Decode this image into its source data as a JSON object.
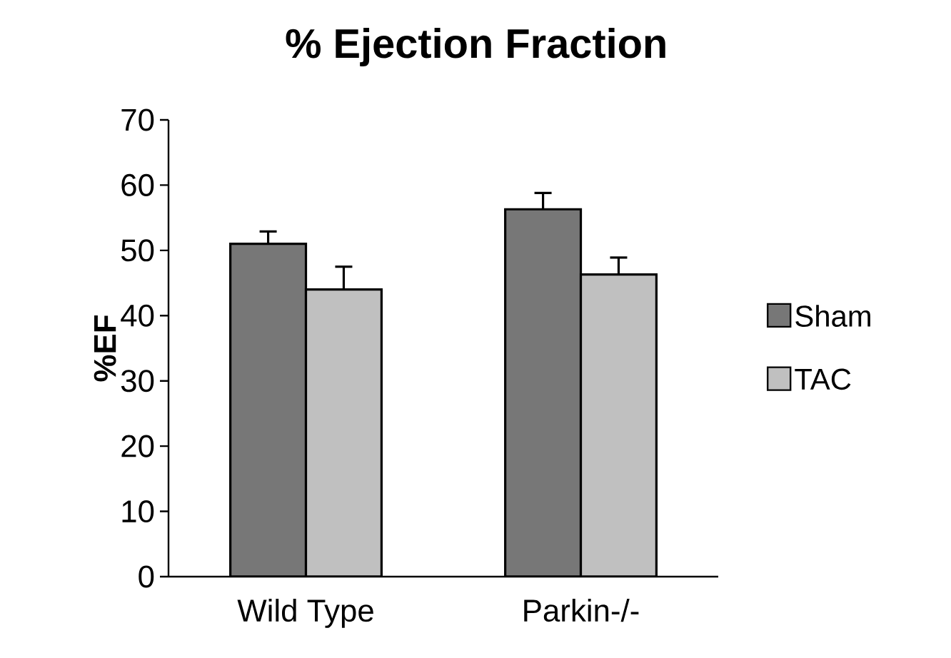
{
  "chart_data": {
    "type": "bar",
    "title": "% Ejection Fraction",
    "ylabel": "%EF",
    "categories": [
      "Wild Type",
      "Parkin-/-"
    ],
    "series": [
      {
        "name": "Sham",
        "color": "#777777",
        "values": [
          51,
          56.3
        ],
        "errors": [
          [
            51,
            52.9
          ],
          [
            56.3,
            58.8
          ]
        ]
      },
      {
        "name": "TAC",
        "color": "#c0c0c0",
        "values": [
          44,
          46.3
        ],
        "errors": [
          [
            44,
            47.5
          ],
          [
            46.3,
            48.9
          ]
        ]
      }
    ],
    "ylim": [
      0,
      70
    ],
    "yticks": [
      0,
      10,
      20,
      30,
      40,
      50,
      60,
      70
    ],
    "legend": "right"
  }
}
